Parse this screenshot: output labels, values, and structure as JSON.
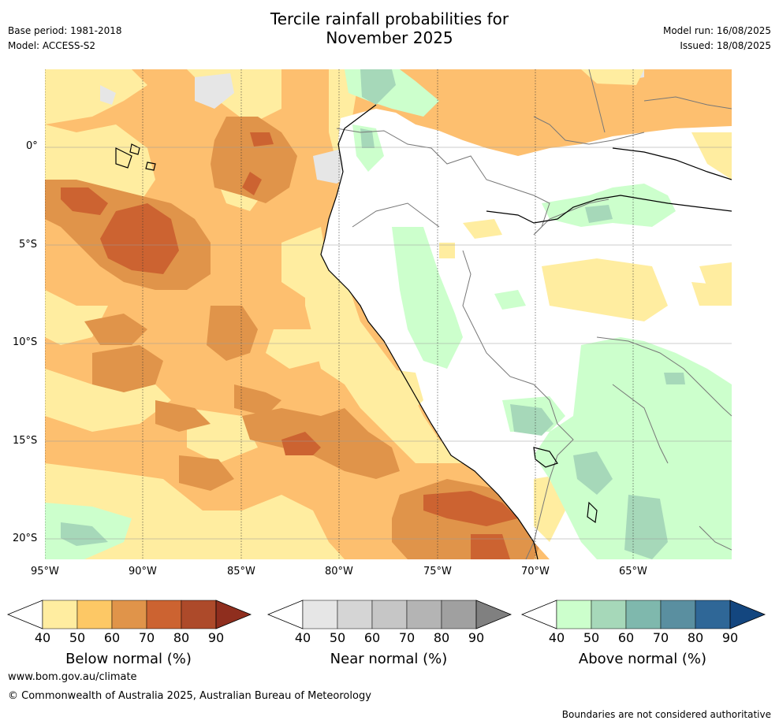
{
  "meta": {
    "base_period": "Base period: 1981-2018",
    "model": "Model: ACCESS-S2",
    "model_run": "Model run: 16/08/2025",
    "issued": "Issued: 18/08/2025"
  },
  "title": {
    "line1": "Tercile rainfall probabilities for",
    "line2": "November 2025"
  },
  "map": {
    "lon_range": [
      -95,
      -60
    ],
    "lat_range": [
      -21,
      4
    ],
    "lat_labels": [
      "0°",
      "5°S",
      "10°S",
      "15°S",
      "20°S"
    ],
    "lon_labels": [
      "95°W",
      "90°W",
      "85°W",
      "80°W",
      "75°W",
      "70°W",
      "65°W"
    ],
    "ocean_color": "#fdbf6f",
    "land_color": "#ffffff"
  },
  "colorbars": [
    {
      "title": "Below normal (%)",
      "ticks": [
        "40",
        "50",
        "60",
        "70",
        "80",
        "90"
      ],
      "colors": [
        "#ffeda0",
        "#fdc865",
        "#e0944a",
        "#cc6331",
        "#ad4a2a",
        "#8f2e1e"
      ]
    },
    {
      "title": "Near normal (%)",
      "ticks": [
        "40",
        "50",
        "60",
        "70",
        "80",
        "90"
      ],
      "colors": [
        "#e6e6e6",
        "#d5d5d5",
        "#c6c6c6",
        "#b4b4b4",
        "#a0a0a0",
        "#808080"
      ]
    },
    {
      "title": "Above normal (%)",
      "ticks": [
        "40",
        "50",
        "60",
        "70",
        "80",
        "90"
      ],
      "colors": [
        "#ccffcc",
        "#a6d8b9",
        "#7fb8ad",
        "#5a8fa0",
        "#2f6797",
        "#13467f"
      ]
    }
  ],
  "footer": {
    "url": "www.bom.gov.au/climate",
    "copyright": "© Commonwealth of Australia 2025, Australian Bureau of Meteorology",
    "disclaimer": "Boundaries are not considered authoritative"
  }
}
